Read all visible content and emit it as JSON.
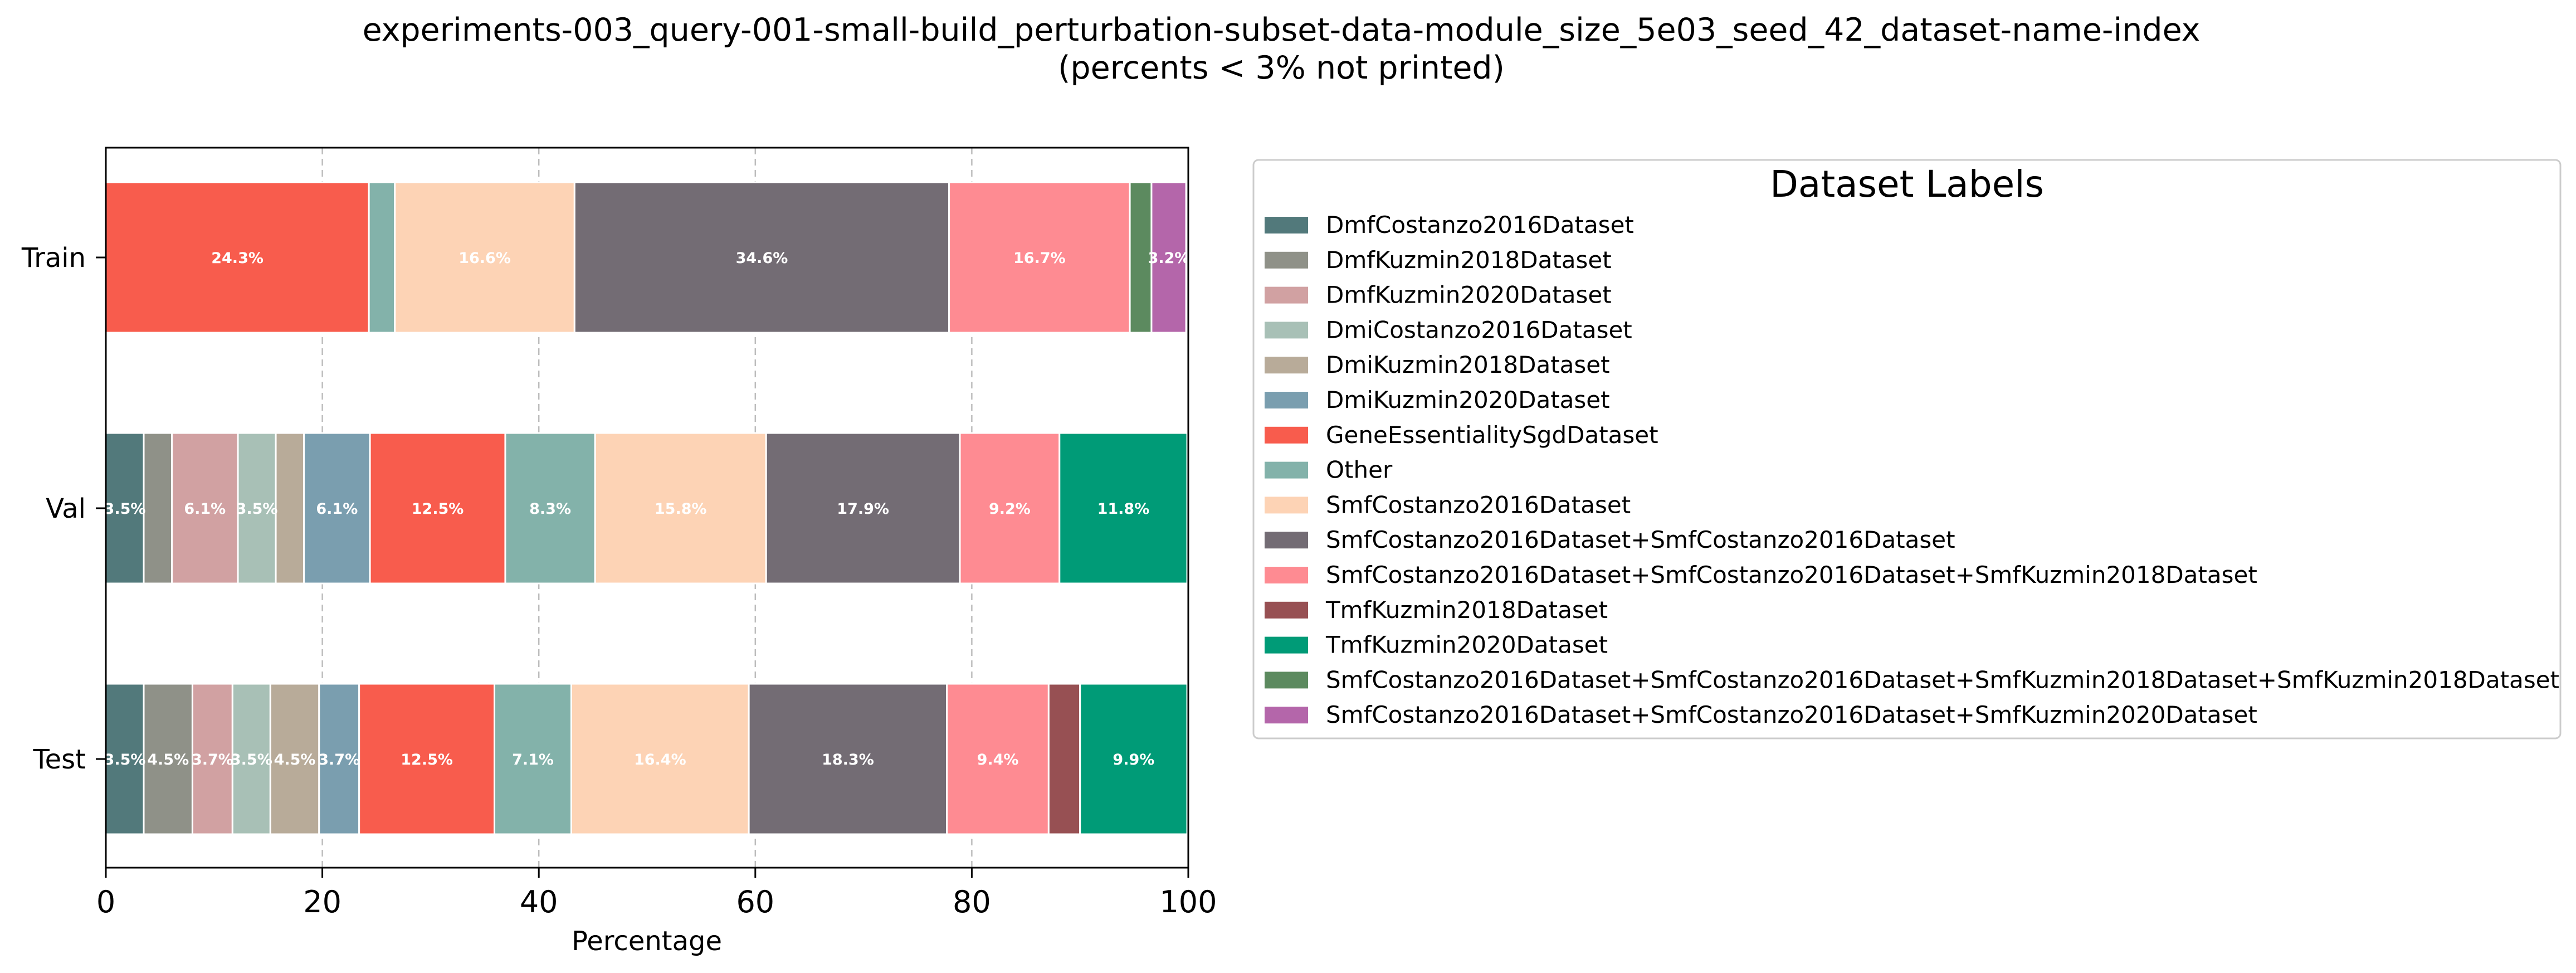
{
  "chart_data": {
    "type": "bar",
    "orientation": "horizontal",
    "stacked": true,
    "title": "experiments-003_query-001-small-build_perturbation-subset-data-module_size_5e03_seed_42_dataset-name-index",
    "subtitle": "(percents < 3% not printed)",
    "xlabel": "Percentage",
    "ylabel": "",
    "xlim": [
      0,
      100
    ],
    "xticks": [
      "0",
      "20",
      "40",
      "60",
      "80",
      "100"
    ],
    "grid": "x-dashed",
    "categories": [
      "Train",
      "Val",
      "Test"
    ],
    "legend": {
      "title": "Dataset Labels",
      "placement": "outside-right"
    },
    "series": [
      {
        "name": "DmfCostanzo2016Dataset",
        "color": "#52797b",
        "values": [
          0,
          3.5,
          3.5
        ],
        "labels": [
          "",
          "3.5%",
          "3.5%"
        ]
      },
      {
        "name": "DmfKuzmin2018Dataset",
        "color": "#8f9188",
        "values": [
          0,
          2.6,
          4.5
        ],
        "labels": [
          "",
          "",
          "4.5%"
        ]
      },
      {
        "name": "DmfKuzmin2020Dataset",
        "color": "#d1a1a2",
        "values": [
          0,
          6.1,
          3.7
        ],
        "labels": [
          "",
          "6.1%",
          "3.7%"
        ]
      },
      {
        "name": "DmiCostanzo2016Dataset",
        "color": "#a8c0b6",
        "values": [
          0,
          3.5,
          3.5
        ],
        "labels": [
          "",
          "3.5%",
          "3.5%"
        ]
      },
      {
        "name": "DmiKuzmin2018Dataset",
        "color": "#b8ab99",
        "values": [
          0,
          2.6,
          4.5
        ],
        "labels": [
          "",
          "",
          "4.5%"
        ]
      },
      {
        "name": "DmiKuzmin2020Dataset",
        "color": "#7a9eaf",
        "values": [
          0,
          6.1,
          3.7
        ],
        "labels": [
          "",
          "6.1%",
          "3.7%"
        ]
      },
      {
        "name": "GeneEssentialitySgdDataset",
        "color": "#f85c4d",
        "values": [
          24.3,
          12.5,
          12.5
        ],
        "labels": [
          "24.3%",
          "12.5%",
          "12.5%"
        ]
      },
      {
        "name": "Other",
        "color": "#83b2aa",
        "values": [
          2.4,
          8.3,
          7.1
        ],
        "labels": [
          "",
          "8.3%",
          "7.1%"
        ]
      },
      {
        "name": "SmfCostanzo2016Dataset",
        "color": "#fdd3b5",
        "values": [
          16.6,
          15.8,
          16.4
        ],
        "labels": [
          "16.6%",
          "15.8%",
          "16.4%"
        ]
      },
      {
        "name": "SmfCostanzo2016Dataset+SmfCostanzo2016Dataset",
        "color": "#736c74",
        "values": [
          34.6,
          17.9,
          18.3
        ],
        "labels": [
          "34.6%",
          "17.9%",
          "18.3%"
        ]
      },
      {
        "name": "SmfCostanzo2016Dataset+SmfCostanzo2016Dataset+SmfKuzmin2018Dataset",
        "color": "#fe8b92",
        "values": [
          16.7,
          9.2,
          9.4
        ],
        "labels": [
          "16.7%",
          "9.2%",
          "9.4%"
        ]
      },
      {
        "name": "TmfKuzmin2018Dataset",
        "color": "#975053",
        "values": [
          0,
          0,
          2.9
        ],
        "labels": [
          "",
          "",
          ""
        ]
      },
      {
        "name": "TmfKuzmin2020Dataset",
        "color": "#009b77",
        "values": [
          0,
          11.8,
          9.9
        ],
        "labels": [
          "",
          "11.8%",
          "9.9%"
        ]
      },
      {
        "name": "SmfCostanzo2016Dataset+SmfCostanzo2016Dataset+SmfKuzmin2018Dataset+SmfKuzmin2018Dataset",
        "color": "#5c8a5f",
        "values": [
          2.0,
          0,
          0
        ],
        "labels": [
          "",
          "",
          ""
        ]
      },
      {
        "name": "SmfCostanzo2016Dataset+SmfCostanzo2016Dataset+SmfKuzmin2020Dataset",
        "color": "#b466aa",
        "values": [
          3.2,
          0,
          0
        ],
        "labels": [
          "3.2%",
          "",
          ""
        ]
      }
    ]
  }
}
